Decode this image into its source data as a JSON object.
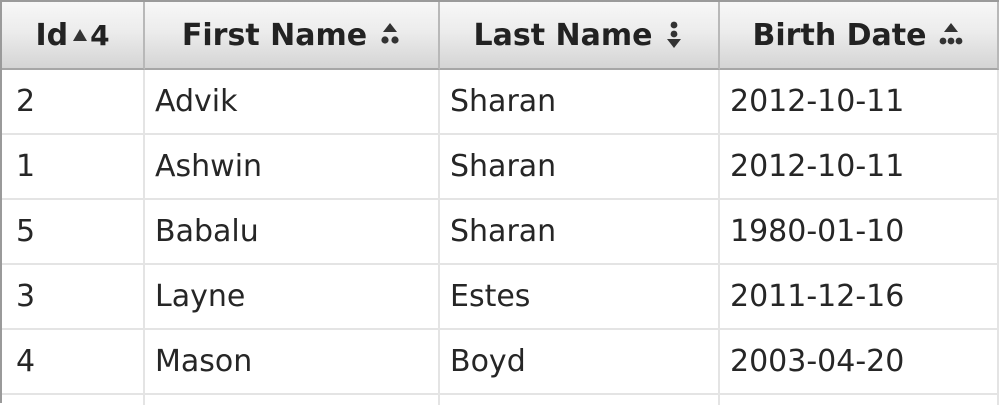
{
  "table": {
    "columns": [
      {
        "label": "Id",
        "sort_icon": "sort-ascending-arrow-icon",
        "sort_order": "4"
      },
      {
        "label": "First Name",
        "sort_icon": "sort-ascending-dots-icon"
      },
      {
        "label": "Last Name",
        "sort_icon": "sort-descending-dots-icon"
      },
      {
        "label": "Birth Date",
        "sort_icon": "sort-ascending-dots-icon"
      }
    ],
    "rows": [
      [
        "2",
        "Advik",
        "Sharan",
        "2012-10-11"
      ],
      [
        "1",
        "Ashwin",
        "Sharan",
        "2012-10-11"
      ],
      [
        "5",
        "Babalu",
        "Sharan",
        "1980-01-10"
      ],
      [
        "3",
        "Layne",
        "Estes",
        "2011-12-16"
      ],
      [
        "4",
        "Mason",
        "Boyd",
        "2003-04-20"
      ]
    ]
  },
  "colors": {
    "header_gradient_top": "#f7f7f7",
    "header_gradient_bottom": "#d4d4d4",
    "grid_line": "#e4e4e4",
    "text": "#262626",
    "sort_icon": "#333333"
  }
}
